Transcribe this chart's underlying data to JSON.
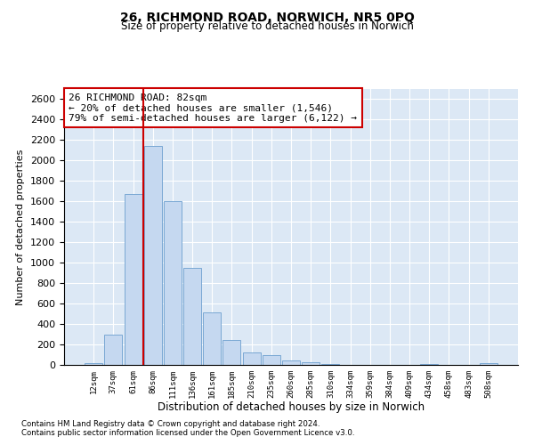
{
  "title": "26, RICHMOND ROAD, NORWICH, NR5 0PQ",
  "subtitle": "Size of property relative to detached houses in Norwich",
  "xlabel": "Distribution of detached houses by size in Norwich",
  "ylabel": "Number of detached properties",
  "bar_color": "#c5d8f0",
  "bar_edge_color": "#7aa8d4",
  "categories": [
    "12sqm",
    "37sqm",
    "61sqm",
    "86sqm",
    "111sqm",
    "136sqm",
    "161sqm",
    "185sqm",
    "210sqm",
    "235sqm",
    "260sqm",
    "285sqm",
    "310sqm",
    "334sqm",
    "359sqm",
    "384sqm",
    "409sqm",
    "434sqm",
    "458sqm",
    "483sqm",
    "508sqm"
  ],
  "values": [
    20,
    300,
    1670,
    2140,
    1600,
    950,
    510,
    245,
    120,
    100,
    45,
    25,
    8,
    3,
    2,
    1,
    0,
    10,
    1,
    0,
    18
  ],
  "vline_x_index": 3,
  "vline_color": "#cc0000",
  "annotation_text": "26 RICHMOND ROAD: 82sqm\n← 20% of detached houses are smaller (1,546)\n79% of semi-detached houses are larger (6,122) →",
  "annotation_box_color": "white",
  "annotation_box_edge_color": "#cc0000",
  "ylim": [
    0,
    2700
  ],
  "yticks": [
    0,
    200,
    400,
    600,
    800,
    1000,
    1200,
    1400,
    1600,
    1800,
    2000,
    2200,
    2400,
    2600
  ],
  "footer1": "Contains HM Land Registry data © Crown copyright and database right 2024.",
  "footer2": "Contains public sector information licensed under the Open Government Licence v3.0.",
  "background_color": "#dce8f5",
  "grid_color": "#ffffff"
}
